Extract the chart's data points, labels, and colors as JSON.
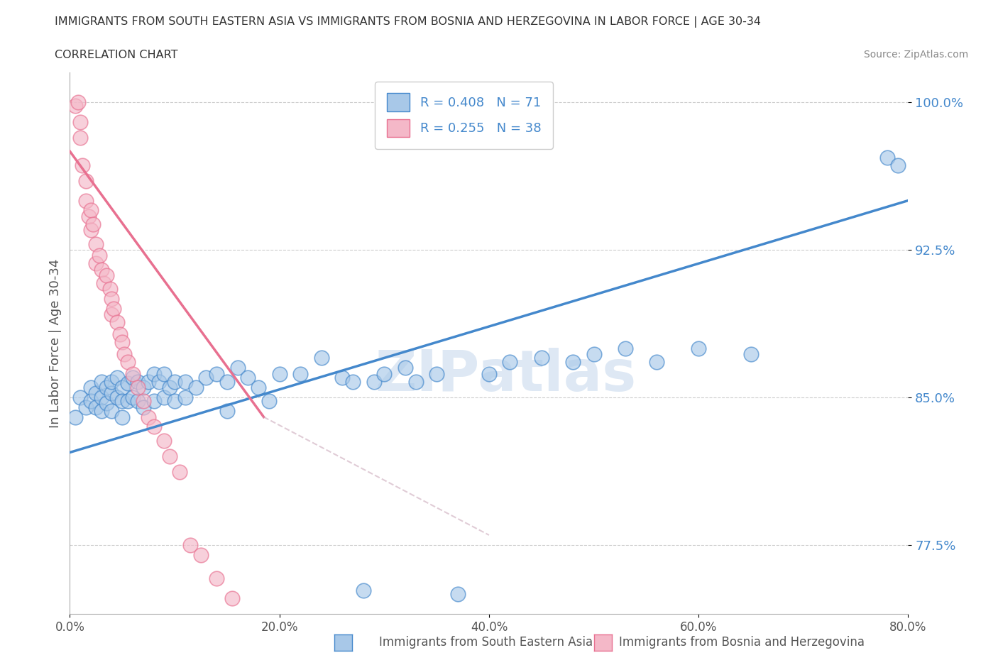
{
  "title": "IMMIGRANTS FROM SOUTH EASTERN ASIA VS IMMIGRANTS FROM BOSNIA AND HERZEGOVINA IN LABOR FORCE | AGE 30-34",
  "subtitle": "CORRELATION CHART",
  "source": "Source: ZipAtlas.com",
  "ylabel": "In Labor Force | Age 30-34",
  "legend_label_1": "Immigrants from South Eastern Asia",
  "legend_label_2": "Immigrants from Bosnia and Herzegovina",
  "R1": 0.408,
  "N1": 71,
  "R2": 0.255,
  "N2": 38,
  "color_blue": "#a8c8e8",
  "color_pink": "#f4b8c8",
  "color_blue_line": "#4488cc",
  "color_pink_line": "#e87090",
  "color_pink_dashed": "#ccaabb",
  "xlim": [
    0.0,
    0.8
  ],
  "ylim": [
    0.74,
    1.015
  ],
  "yticks": [
    0.775,
    0.85,
    0.925,
    1.0
  ],
  "ytick_labels": [
    "77.5%",
    "85.0%",
    "92.5%",
    "100.0%"
  ],
  "xticks": [
    0.0,
    0.2,
    0.4,
    0.6,
    0.8
  ],
  "xtick_labels": [
    "0.0%",
    "20.0%",
    "40.0%",
    "60.0%",
    "80.0%"
  ],
  "watermark": "ZIPatlas",
  "blue_x": [
    0.005,
    0.01,
    0.015,
    0.02,
    0.02,
    0.025,
    0.025,
    0.03,
    0.03,
    0.03,
    0.035,
    0.035,
    0.04,
    0.04,
    0.04,
    0.045,
    0.045,
    0.05,
    0.05,
    0.05,
    0.055,
    0.055,
    0.06,
    0.06,
    0.065,
    0.065,
    0.07,
    0.07,
    0.075,
    0.08,
    0.08,
    0.085,
    0.09,
    0.09,
    0.095,
    0.1,
    0.1,
    0.11,
    0.11,
    0.12,
    0.13,
    0.14,
    0.15,
    0.15,
    0.16,
    0.17,
    0.18,
    0.19,
    0.2,
    0.22,
    0.24,
    0.26,
    0.27,
    0.28,
    0.29,
    0.3,
    0.32,
    0.33,
    0.35,
    0.37,
    0.4,
    0.42,
    0.45,
    0.48,
    0.5,
    0.53,
    0.56,
    0.6,
    0.65,
    0.78,
    0.79
  ],
  "blue_y": [
    0.84,
    0.85,
    0.845,
    0.855,
    0.848,
    0.852,
    0.845,
    0.858,
    0.85,
    0.843,
    0.855,
    0.847,
    0.852,
    0.858,
    0.843,
    0.86,
    0.85,
    0.855,
    0.848,
    0.84,
    0.857,
    0.848,
    0.86,
    0.85,
    0.858,
    0.848,
    0.855,
    0.845,
    0.858,
    0.862,
    0.848,
    0.858,
    0.862,
    0.85,
    0.855,
    0.858,
    0.848,
    0.858,
    0.85,
    0.855,
    0.86,
    0.862,
    0.858,
    0.843,
    0.865,
    0.86,
    0.855,
    0.848,
    0.862,
    0.862,
    0.87,
    0.86,
    0.858,
    0.752,
    0.858,
    0.862,
    0.865,
    0.858,
    0.862,
    0.75,
    0.862,
    0.868,
    0.87,
    0.868,
    0.872,
    0.875,
    0.868,
    0.875,
    0.872,
    0.972,
    0.968
  ],
  "pink_x": [
    0.005,
    0.008,
    0.01,
    0.01,
    0.012,
    0.015,
    0.015,
    0.018,
    0.02,
    0.02,
    0.022,
    0.025,
    0.025,
    0.028,
    0.03,
    0.032,
    0.035,
    0.038,
    0.04,
    0.04,
    0.042,
    0.045,
    0.048,
    0.05,
    0.052,
    0.055,
    0.06,
    0.065,
    0.07,
    0.075,
    0.08,
    0.09,
    0.095,
    0.105,
    0.115,
    0.125,
    0.14,
    0.155
  ],
  "pink_y": [
    0.998,
    1.0,
    0.99,
    0.982,
    0.968,
    0.96,
    0.95,
    0.942,
    0.945,
    0.935,
    0.938,
    0.928,
    0.918,
    0.922,
    0.915,
    0.908,
    0.912,
    0.905,
    0.9,
    0.892,
    0.895,
    0.888,
    0.882,
    0.878,
    0.872,
    0.868,
    0.862,
    0.855,
    0.848,
    0.84,
    0.835,
    0.828,
    0.82,
    0.812,
    0.775,
    0.77,
    0.758,
    0.748
  ],
  "blue_line_x": [
    0.0,
    0.8
  ],
  "blue_line_y": [
    0.822,
    0.95
  ],
  "pink_line_x": [
    0.0,
    0.185
  ],
  "pink_line_y": [
    0.975,
    0.84
  ]
}
